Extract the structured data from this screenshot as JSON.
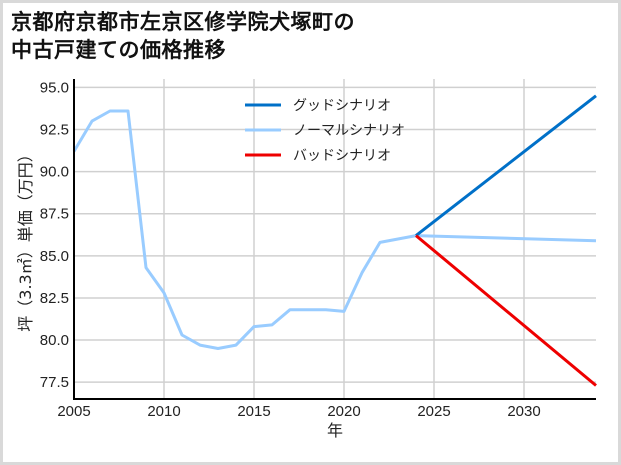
{
  "title_line1": "京都府京都市左京区修学院犬塚町の",
  "title_line2": "中古戸建ての価格推移",
  "chart_data": {
    "type": "line",
    "title": "京都府京都市左京区修学院犬塚町の中古戸建ての価格推移",
    "xlabel": "年",
    "ylabel": "坪（3.3㎡）単価（万円）",
    "xlim": [
      2005,
      2034
    ],
    "ylim": [
      76.5,
      95.5
    ],
    "xticks": [
      2005,
      2010,
      2015,
      2020,
      2025,
      2030
    ],
    "yticks": [
      "77.5",
      "80.0",
      "82.5",
      "85.0",
      "87.5",
      "90.0",
      "92.5",
      "95.0"
    ],
    "grid": true,
    "legend_position": "upper center",
    "series": [
      {
        "name": "グッドシナリオ",
        "color": "#0070c8",
        "x": [
          2024,
          2034
        ],
        "values": [
          86.2,
          94.5
        ]
      },
      {
        "name": "ノーマルシナリオ",
        "color": "#99ccff",
        "x": [
          2005,
          2006,
          2007,
          2008,
          2009,
          2010,
          2011,
          2012,
          2013,
          2014,
          2015,
          2016,
          2017,
          2018,
          2019,
          2020,
          2021,
          2022,
          2023,
          2024,
          2034
        ],
        "values": [
          91.2,
          93.0,
          93.6,
          93.6,
          84.3,
          82.8,
          80.3,
          79.7,
          79.5,
          79.7,
          80.8,
          80.9,
          81.8,
          81.8,
          81.8,
          81.7,
          84.0,
          85.8,
          86.0,
          86.2,
          85.9
        ]
      },
      {
        "name": "バッドシナリオ",
        "color": "#ee0000",
        "x": [
          2024,
          2034
        ],
        "values": [
          86.2,
          77.3
        ]
      }
    ]
  }
}
